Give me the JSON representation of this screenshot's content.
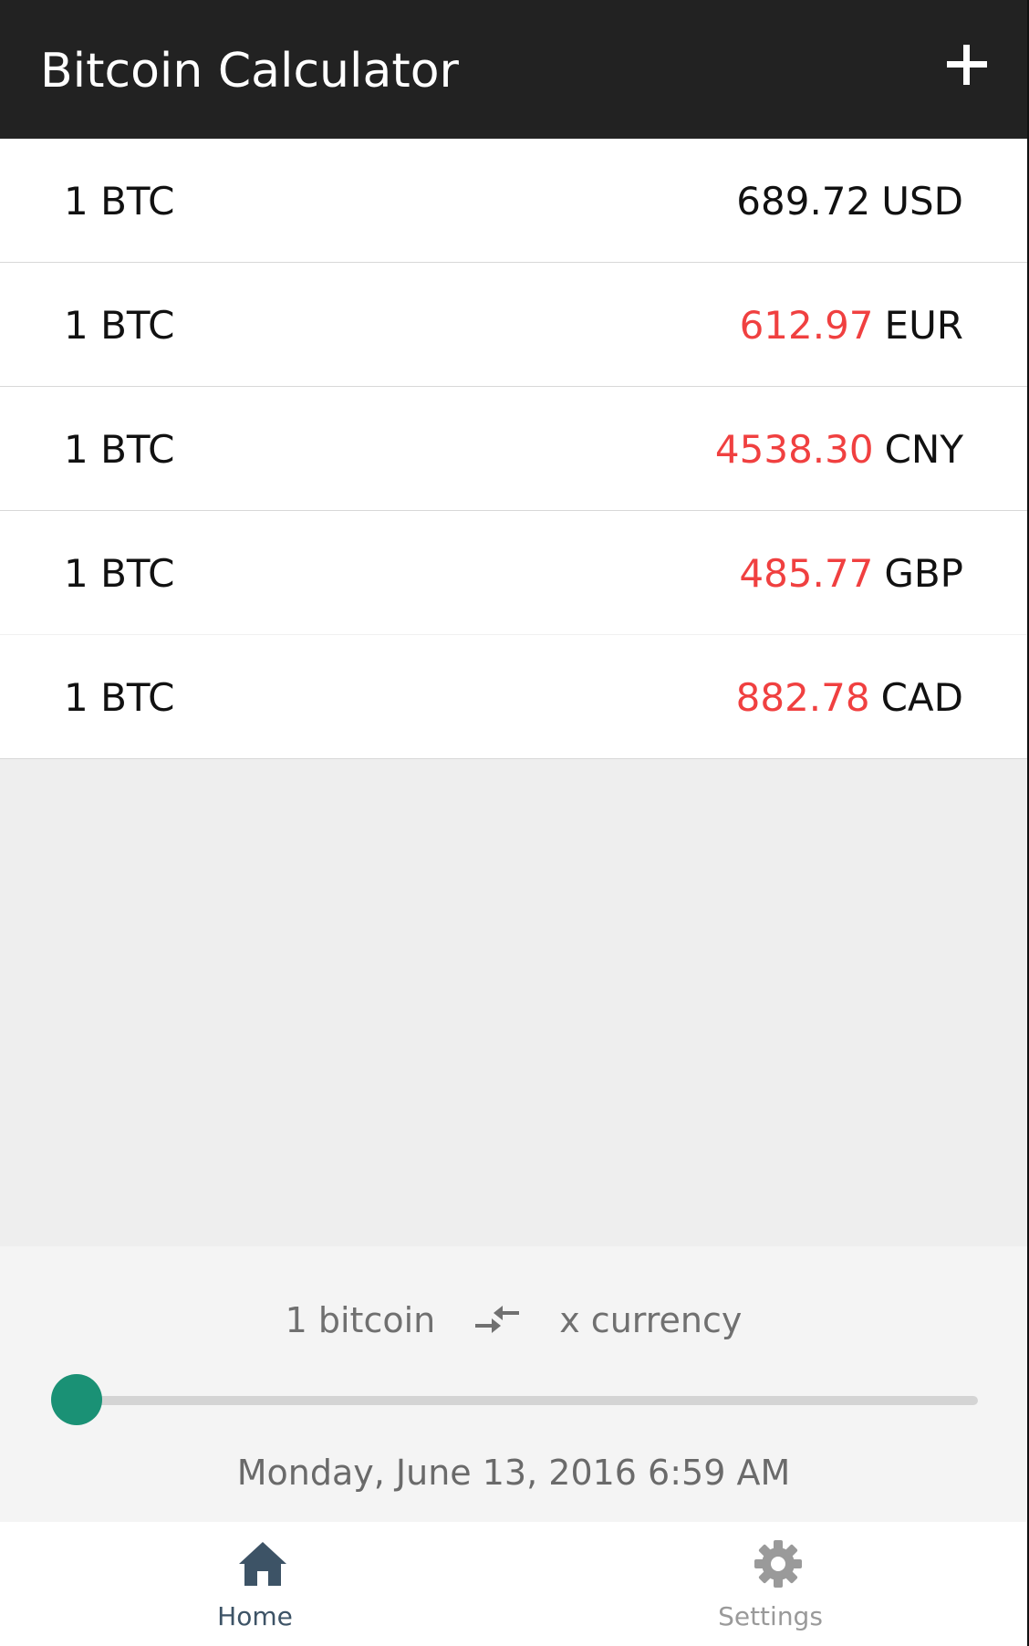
{
  "header": {
    "title": "Bitcoin Calculator",
    "add_icon": "plus-icon"
  },
  "rates": [
    {
      "base": "1 BTC",
      "amount": "689.72",
      "currency": "USD",
      "trend": "neutral"
    },
    {
      "base": "1 BTC",
      "amount": "612.97",
      "currency": "EUR",
      "trend": "down"
    },
    {
      "base": "1 BTC",
      "amount": "4538.30",
      "currency": "CNY",
      "trend": "down"
    },
    {
      "base": "1 BTC",
      "amount": "485.77",
      "currency": "GBP",
      "trend": "down"
    },
    {
      "base": "1 BTC",
      "amount": "882.78",
      "currency": "CAD",
      "trend": "down"
    }
  ],
  "colors": {
    "header_bg": "#222222",
    "down": "#f04040",
    "neutral": "#111111",
    "slider_thumb": "#1a9175",
    "nav_active": "#3d5366",
    "nav_inactive": "#9a9a9a"
  },
  "mode": {
    "from": "1 bitcoin",
    "swap_icon": "swap-arrows-icon",
    "to": "x currency"
  },
  "slider": {
    "value": 0.0
  },
  "timestamp": "Monday, June 13, 2016 6:59 AM",
  "nav": {
    "home": {
      "label": "Home",
      "icon": "home-icon",
      "active": true
    },
    "settings": {
      "label": "Settings",
      "icon": "gear-icon",
      "active": false
    }
  }
}
